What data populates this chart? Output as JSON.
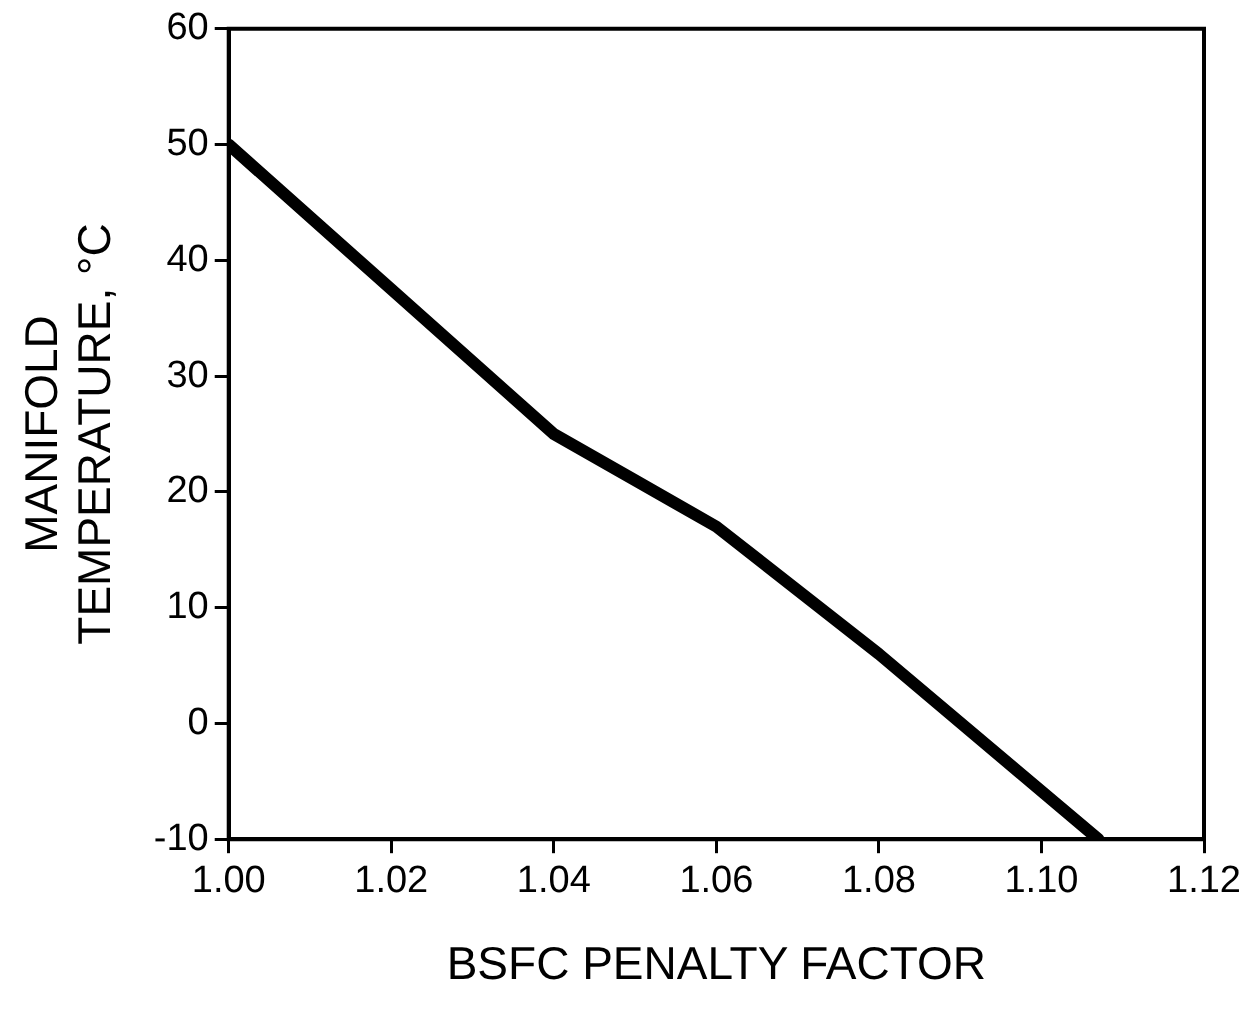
{
  "chart_data": {
    "type": "line",
    "xlabel": "BSFC PENALTY FACTOR",
    "ylabel": "MANIFOLD\nTEMPERATURE, °C",
    "x": [
      1.0,
      1.02,
      1.04,
      1.05,
      1.06,
      1.08,
      1.107
    ],
    "series": [
      {
        "color": "#000000",
        "values": [
          50,
          37.5,
          25,
          21,
          17,
          6,
          -10
        ]
      }
    ],
    "xlim": [
      1.0,
      1.12
    ],
    "xticks": [
      {
        "value": 1.0,
        "label": "1.00"
      },
      {
        "value": 1.02,
        "label": "1.02"
      },
      {
        "value": 1.04,
        "label": "1.04"
      },
      {
        "value": 1.06,
        "label": "1.06"
      },
      {
        "value": 1.08,
        "label": "1.08"
      },
      {
        "value": 1.1,
        "label": "1.10"
      },
      {
        "value": 1.12,
        "label": "1.12"
      }
    ],
    "ylim": [
      -10,
      60
    ],
    "yticks": [
      -10,
      0,
      10,
      20,
      30,
      40,
      50,
      60
    ],
    "grid": false,
    "legend": false,
    "marker": "none",
    "line_style": "solid"
  }
}
